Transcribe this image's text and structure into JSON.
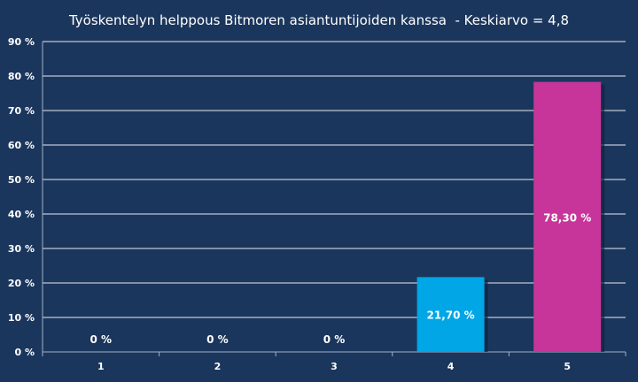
{
  "chart_data": {
    "type": "bar",
    "title": "Työskentelyn helppous Bitmoren asiantuntijoiden kanssa  - Keskiarvo = 4,8",
    "categories": [
      "1",
      "2",
      "3",
      "4",
      "5"
    ],
    "values": [
      0,
      0,
      0,
      21.7,
      78.3
    ],
    "value_labels": [
      "0 %",
      "0 %",
      "0 %",
      "21,70 %",
      "78,30 %"
    ],
    "bar_colors": [
      "#00a6e6",
      "#00a6e6",
      "#00a6e6",
      "#00a6e6",
      "#c7359a"
    ],
    "yticks": [
      0,
      10,
      20,
      30,
      40,
      50,
      60,
      70,
      80,
      90
    ],
    "ytick_labels": [
      "0 %",
      "10 %",
      "20 %",
      "30 %",
      "40 %",
      "50 %",
      "60 %",
      "70 %",
      "80 %",
      "90 %"
    ],
    "ylim": [
      0,
      90
    ],
    "xlabel": "",
    "ylabel": "",
    "grid": true,
    "legend": false
  },
  "colors": {
    "background": "#1b365d",
    "grid": "#ffffff",
    "text": "#ffffff"
  }
}
